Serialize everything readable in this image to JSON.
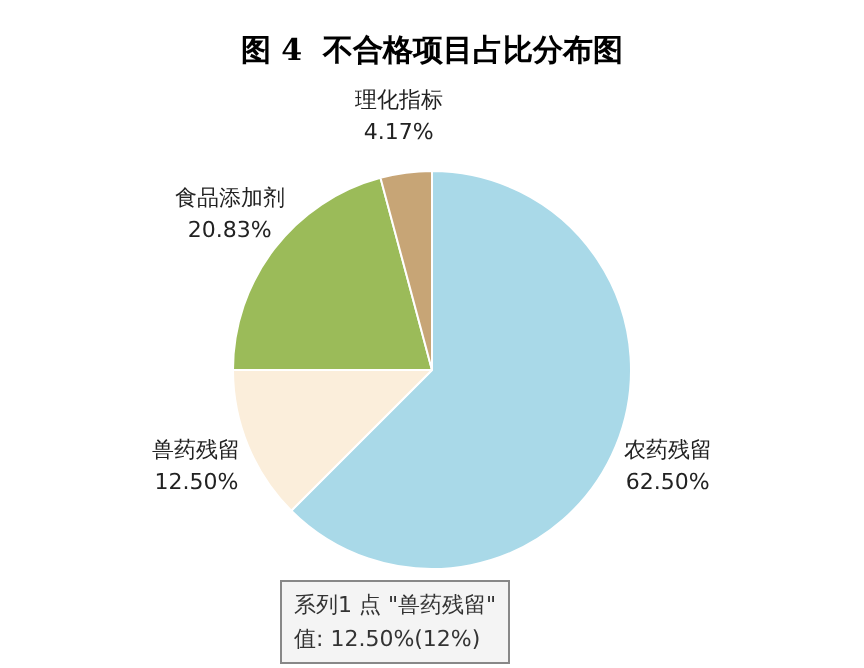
{
  "chart_data": {
    "type": "pie",
    "title": "图 4  不合格项目占比分布图",
    "categories": [
      "农药残留",
      "兽药残留",
      "食品添加剂",
      "理化指标"
    ],
    "values": [
      62.5,
      12.5,
      20.83,
      4.17
    ],
    "value_labels": [
      "62.50%",
      "12.50%",
      "20.83%",
      "4.17%"
    ],
    "colors": [
      "#a9d9e8",
      "#fbeedb",
      "#9bbb59",
      "#c7a576"
    ],
    "annotations": [
      "系列1 点 \"兽药残留\"\n值: 12.50%(12%)"
    ]
  }
}
